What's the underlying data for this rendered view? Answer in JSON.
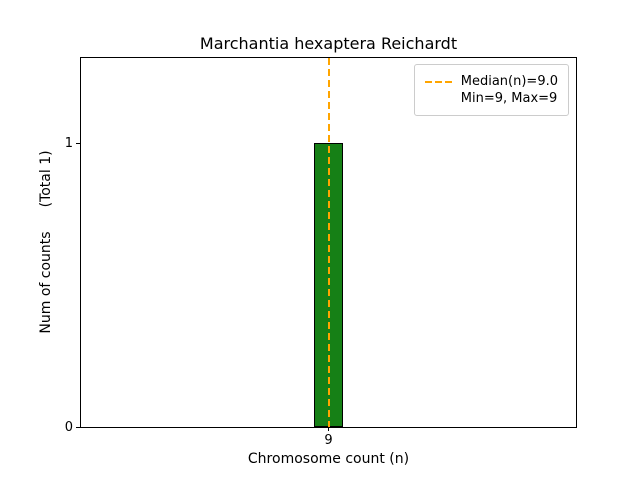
{
  "chart_data": {
    "type": "bar",
    "title": "Marchantia hexaptera Reichardt",
    "xlabel": "Chromosome count (n)",
    "ylabel": "Num of counts",
    "ylabel_total": "(Total 1)",
    "categories": [
      "9"
    ],
    "x": [
      9
    ],
    "values": [
      1
    ],
    "bar_width": 0.8,
    "xlim": [
      2,
      16
    ],
    "ylim": [
      0,
      1.3
    ],
    "xticks": [
      9
    ],
    "yticks": [
      0,
      1
    ],
    "grid": false,
    "bar_color": "#168016",
    "bar_edge_color": "#000000",
    "median_line": {
      "value": 9.0,
      "color": "#ffa500",
      "style": "dashed"
    },
    "stats": {
      "median": 9.0,
      "min": 9,
      "max": 9,
      "total_counts": 1
    },
    "legend": {
      "position": "upper right",
      "entries": [
        {
          "label": "Median(n)=9.0",
          "symbol": "dashed-line",
          "color": "#ffa500"
        },
        {
          "label": "Min=9, Max=9",
          "symbol": "none",
          "color": ""
        }
      ]
    }
  }
}
